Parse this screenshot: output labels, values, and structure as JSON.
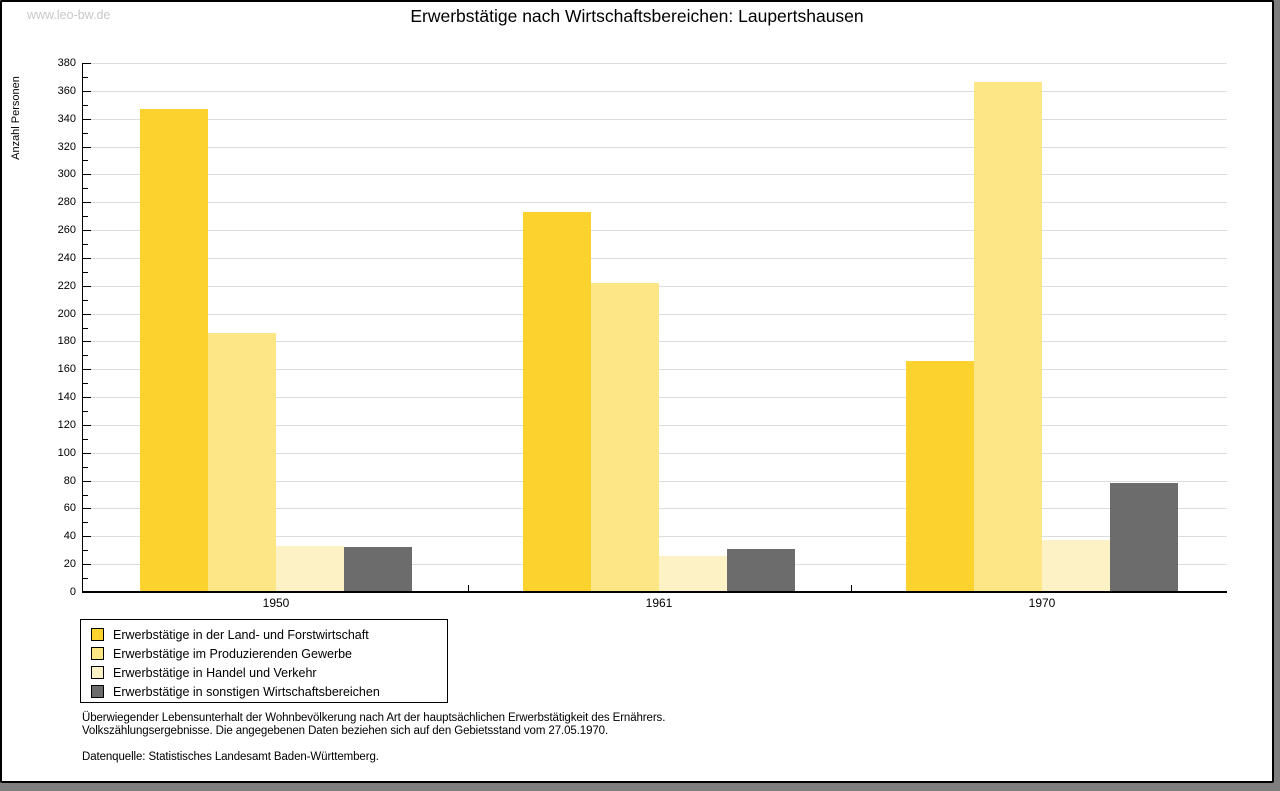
{
  "watermark": "www.leo-bw.de",
  "title": "Erwerbstätige nach Wirtschaftsbereichen: Laupertshausen",
  "chart_data": {
    "type": "bar",
    "title": "Erwerbstätige nach Wirtschaftsbereichen: Laupertshausen",
    "xlabel": "",
    "ylabel": "Anzahl Personen",
    "ylim": [
      0,
      380
    ],
    "ytick_step": 20,
    "ytick_minor_step": 10,
    "grid": true,
    "legend_position": "bottom-left",
    "categories": [
      "1950",
      "1961",
      "1970"
    ],
    "series": [
      {
        "name": "Erwerbstätige in der Land- und Forstwirtschaft",
        "color": "#FCD32E",
        "values": [
          347,
          273,
          166
        ]
      },
      {
        "name": "Erwerbstätige im Produzierenden Gewerbe",
        "color": "#FCE685",
        "values": [
          186,
          222,
          366
        ]
      },
      {
        "name": "Erwerbstätige in Handel und Verkehr",
        "color": "#FCF2C5",
        "values": [
          33,
          26,
          37
        ]
      },
      {
        "name": "Erwerbstätige in sonstigen Wirtschaftsbereichen",
        "color": "#6C6C6C",
        "values": [
          32,
          31,
          78
        ]
      }
    ]
  },
  "footer": {
    "line1": "Überwiegender Lebensunterhalt der Wohnbevölkerung nach Art der hauptsächlichen Erwerbstätigkeit des Ernährers.",
    "line2": "Volkszählungsergebnisse. Die angegebenen Daten beziehen sich auf den Gebietsstand vom 27.05.1970.",
    "source": "Datenquelle: Statistisches Landesamt Baden-Württemberg."
  },
  "colors": {
    "gridline": "#dcdcdc",
    "axis": "#000000",
    "watermark": "#c8c8c8"
  }
}
